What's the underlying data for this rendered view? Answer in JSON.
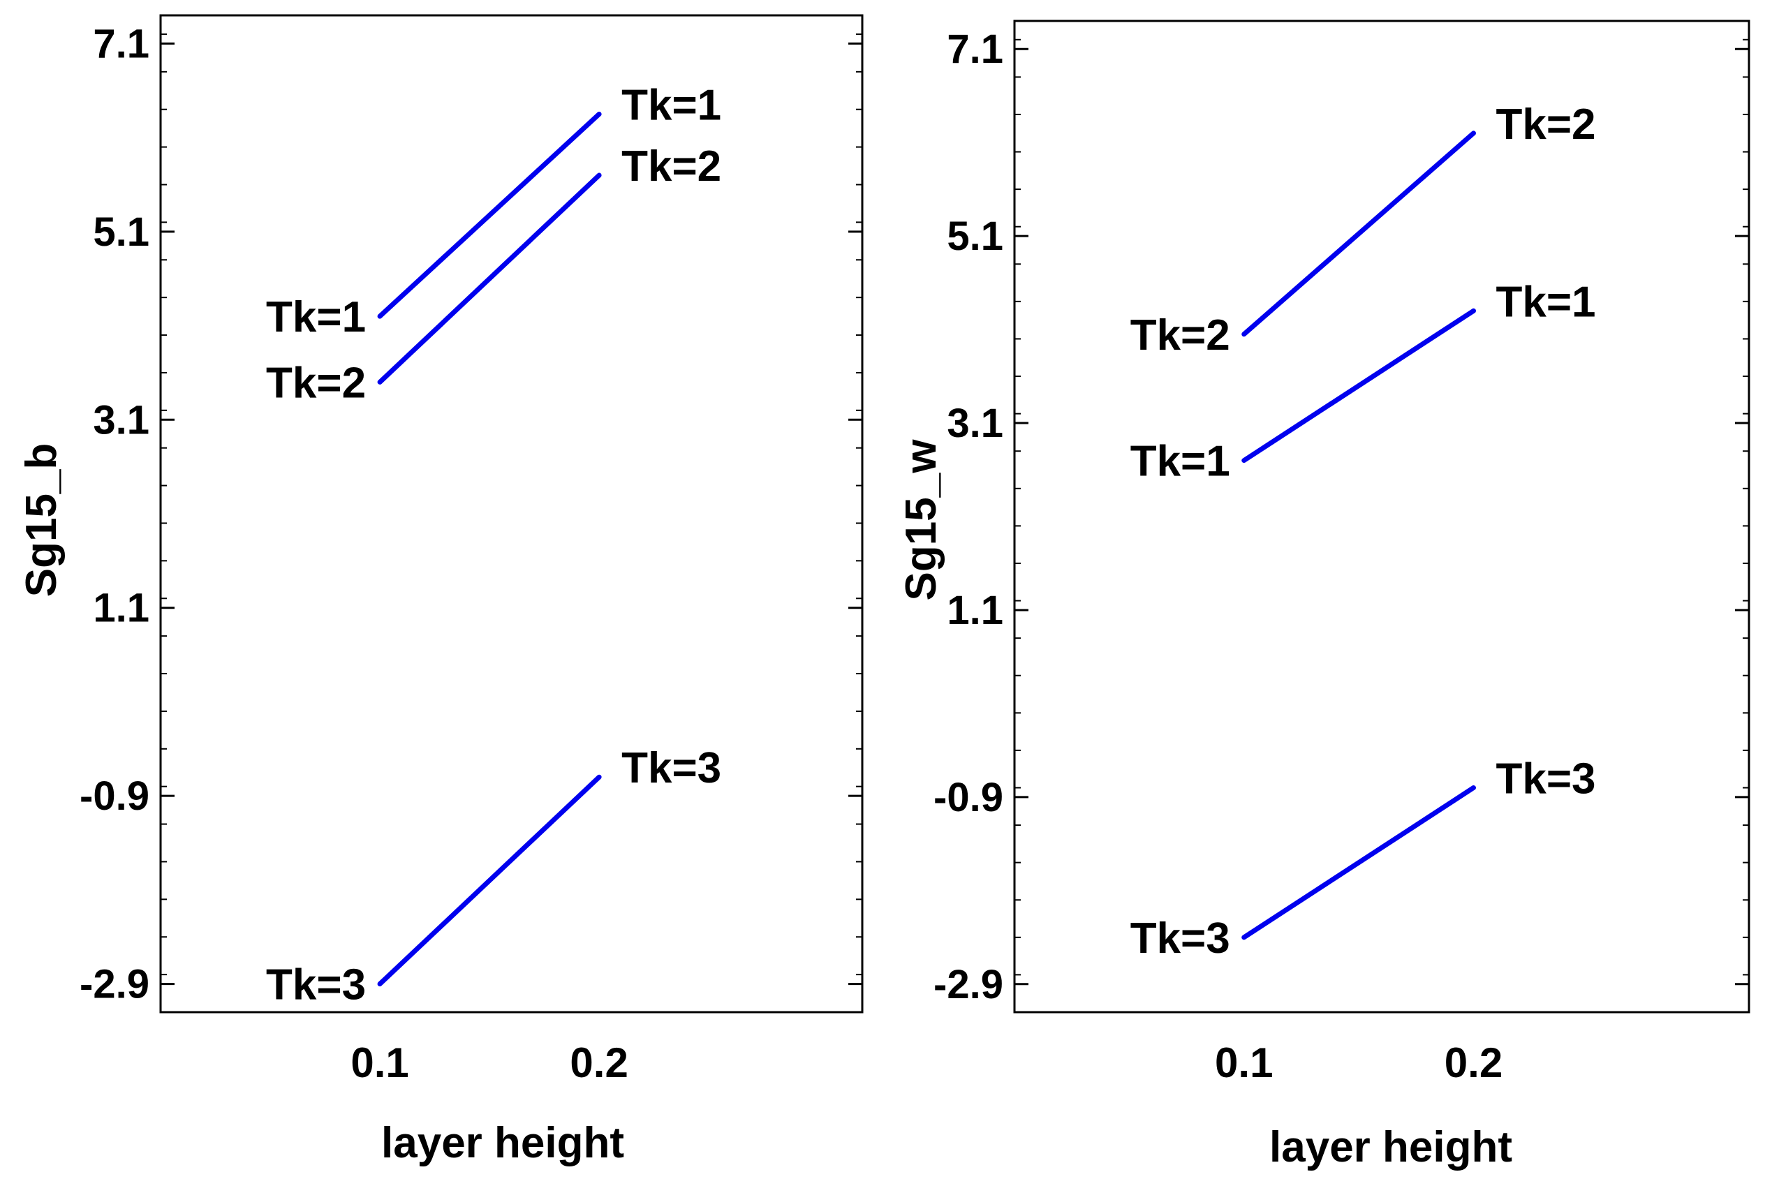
{
  "colors": {
    "line": "#0000ee",
    "axis": "#000000",
    "background": "#ffffff"
  },
  "chart_data": [
    {
      "type": "line",
      "xlabel": "layer height",
      "ylabel": "Sg15_b",
      "xlim": [
        0.0,
        0.32
      ],
      "ylim": [
        -3.2,
        7.4
      ],
      "xticks": [
        0.1,
        0.2
      ],
      "xtick_labels": [
        "0.1",
        "0.2"
      ],
      "yticks": [
        -2.9,
        -0.9,
        1.1,
        3.1,
        5.1,
        7.1
      ],
      "ytick_labels": [
        "-2.9",
        "-0.9",
        "1.1",
        "3.1",
        "5.1",
        "7.1"
      ],
      "series": [
        {
          "name": "Tk=1",
          "x": [
            0.1,
            0.2
          ],
          "y": [
            4.2,
            6.35
          ],
          "start_label": "Tk=1",
          "end_label": "Tk=1"
        },
        {
          "name": "Tk=2",
          "x": [
            0.1,
            0.2
          ],
          "y": [
            3.5,
            5.7
          ],
          "start_label": "Tk=2",
          "end_label": "Tk=2"
        },
        {
          "name": "Tk=3",
          "x": [
            0.1,
            0.2
          ],
          "y": [
            -2.9,
            -0.7
          ],
          "start_label": "Tk=3",
          "end_label": "Tk=3"
        }
      ]
    },
    {
      "type": "line",
      "xlabel": "layer height",
      "ylabel": "Sg15_w",
      "xlim": [
        0.0,
        0.32
      ],
      "ylim": [
        -3.2,
        7.4
      ],
      "xticks": [
        0.1,
        0.2
      ],
      "xtick_labels": [
        "0.1",
        "0.2"
      ],
      "yticks": [
        -2.9,
        -0.9,
        1.1,
        3.1,
        5.1,
        7.1
      ],
      "ytick_labels": [
        "-2.9",
        "-0.9",
        "1.1",
        "3.1",
        "5.1",
        "7.1"
      ],
      "series": [
        {
          "name": "Tk=2",
          "x": [
            0.1,
            0.2
          ],
          "y": [
            4.05,
            6.2
          ],
          "start_label": "Tk=2",
          "end_label": "Tk=2"
        },
        {
          "name": "Tk=1",
          "x": [
            0.1,
            0.2
          ],
          "y": [
            2.7,
            4.3
          ],
          "start_label": "Tk=1",
          "end_label": "Tk=1"
        },
        {
          "name": "Tk=3",
          "x": [
            0.1,
            0.2
          ],
          "y": [
            -2.4,
            -0.8
          ],
          "start_label": "Tk=3",
          "end_label": "Tk=3"
        }
      ]
    }
  ]
}
